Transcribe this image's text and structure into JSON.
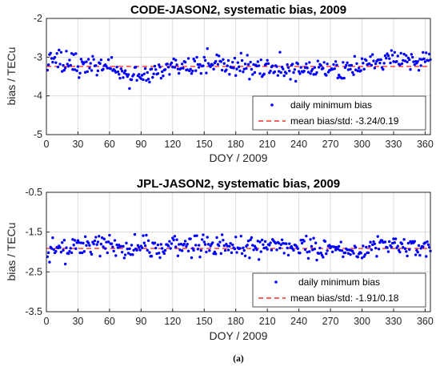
{
  "caption": "(a)",
  "chart_data": [
    {
      "type": "scatter",
      "title": "CODE-JASON2, systematic bias, 2009",
      "xlabel": "DOY / 2009",
      "ylabel": "bias / TECu",
      "xlim": [
        0,
        365
      ],
      "ylim": [
        -5,
        -2
      ],
      "xticks": [
        0,
        30,
        60,
        90,
        120,
        150,
        180,
        210,
        240,
        270,
        300,
        330,
        360
      ],
      "yticks": [
        -2,
        -3,
        -4,
        -5
      ],
      "grid": true,
      "legend_position": "lower-right",
      "colors": {
        "points": "#0000ff",
        "mean_line": "#ff0000"
      },
      "series": [
        {
          "name": "daily minimum bias",
          "style": "points",
          "x_start": 1,
          "x_end": 365,
          "trend": [
            [
              0,
              -3.05
            ],
            [
              15,
              -3.15
            ],
            [
              30,
              -3.25
            ],
            [
              45,
              -3.25
            ],
            [
              60,
              -3.3
            ],
            [
              75,
              -3.45
            ],
            [
              90,
              -3.5
            ],
            [
              105,
              -3.35
            ],
            [
              120,
              -3.25
            ],
            [
              135,
              -3.2
            ],
            [
              150,
              -3.2
            ],
            [
              165,
              -3.15
            ],
            [
              180,
              -3.2
            ],
            [
              195,
              -3.25
            ],
            [
              210,
              -3.25
            ],
            [
              225,
              -3.3
            ],
            [
              240,
              -3.3
            ],
            [
              255,
              -3.3
            ],
            [
              270,
              -3.35
            ],
            [
              285,
              -3.4
            ],
            [
              300,
              -3.2
            ],
            [
              315,
              -3.1
            ],
            [
              330,
              -3.05
            ],
            [
              345,
              -3.1
            ],
            [
              365,
              -3.05
            ]
          ],
          "scatter_std": 0.13
        },
        {
          "name": "mean bias/std: -3.24/0.19",
          "style": "dashed",
          "value": -3.24
        }
      ]
    },
    {
      "type": "scatter",
      "title": "JPL-JASON2, systematic bias, 2009",
      "xlabel": "DOY / 2009",
      "ylabel": "bias / TECu",
      "xlim": [
        0,
        365
      ],
      "ylim": [
        -3.5,
        -0.5
      ],
      "xticks": [
        0,
        30,
        60,
        90,
        120,
        150,
        180,
        210,
        240,
        270,
        300,
        330,
        360
      ],
      "yticks": [
        -0.5,
        -1.5,
        -2.5,
        -3.5
      ],
      "grid": true,
      "legend_position": "lower-right",
      "colors": {
        "points": "#0000ff",
        "mean_line": "#ff0000"
      },
      "series": [
        {
          "name": "daily minimum bias",
          "style": "points",
          "x_start": 1,
          "x_end": 365,
          "trend": [
            [
              0,
              -2.0
            ],
            [
              15,
              -1.95
            ],
            [
              30,
              -1.85
            ],
            [
              45,
              -1.75
            ],
            [
              60,
              -1.85
            ],
            [
              75,
              -1.95
            ],
            [
              90,
              -1.9
            ],
            [
              105,
              -1.9
            ],
            [
              120,
              -1.85
            ],
            [
              135,
              -1.9
            ],
            [
              150,
              -1.85
            ],
            [
              165,
              -1.85
            ],
            [
              180,
              -1.85
            ],
            [
              195,
              -1.85
            ],
            [
              210,
              -1.85
            ],
            [
              225,
              -1.85
            ],
            [
              240,
              -1.9
            ],
            [
              255,
              -1.9
            ],
            [
              270,
              -1.95
            ],
            [
              285,
              -2.0
            ],
            [
              300,
              -1.95
            ],
            [
              315,
              -1.85
            ],
            [
              330,
              -1.85
            ],
            [
              345,
              -1.85
            ],
            [
              365,
              -1.95
            ]
          ],
          "scatter_std": 0.14
        },
        {
          "name": "mean bias/std: -1.91/0.18",
          "style": "dashed",
          "value": -1.91
        }
      ]
    }
  ]
}
